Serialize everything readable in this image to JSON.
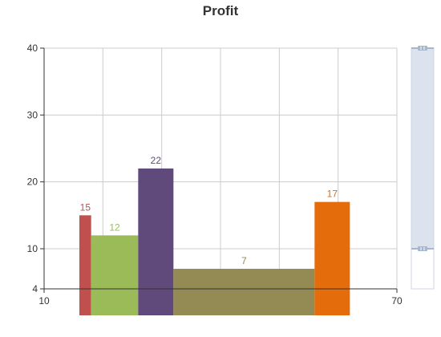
{
  "chart_data": {
    "type": "bar",
    "title": "Profit",
    "xlabel": "",
    "ylabel": "",
    "xlim": [
      10,
      70
    ],
    "ylim": [
      4,
      40
    ],
    "x_ticks": [
      {
        "value": 10,
        "label": "10"
      },
      {
        "value": 70,
        "label": "70"
      }
    ],
    "y_ticks": [
      {
        "value": 4,
        "label": "4"
      },
      {
        "value": 10,
        "label": "10"
      },
      {
        "value": 20,
        "label": "20"
      },
      {
        "value": 30,
        "label": "30"
      },
      {
        "value": 40,
        "label": "40"
      }
    ],
    "x_grid": [
      10,
      20,
      30,
      40,
      50,
      60,
      70
    ],
    "grid": true,
    "bars": [
      {
        "x0": 16,
        "x1": 18,
        "value": 15,
        "label": "15",
        "color": "#c0504d"
      },
      {
        "x0": 18,
        "x1": 26,
        "value": 12,
        "label": "12",
        "color": "#9bbb59"
      },
      {
        "x0": 26,
        "x1": 32,
        "value": 22,
        "label": "22",
        "color": "#604a7b"
      },
      {
        "x0": 32,
        "x1": 56,
        "value": 7,
        "label": "7",
        "color": "#948a54"
      },
      {
        "x0": 56,
        "x1": 62,
        "value": 17,
        "label": "17",
        "color": "#e46c0a"
      }
    ],
    "zoom_slider": {
      "orientation": "vertical",
      "range": [
        10,
        40
      ]
    }
  },
  "colors": {
    "axis": "#333333",
    "grid": "#cccccc",
    "slider_fill": "#dce3ee",
    "slider_border": "#cfd6e0",
    "handle": "#a5b7cc"
  }
}
